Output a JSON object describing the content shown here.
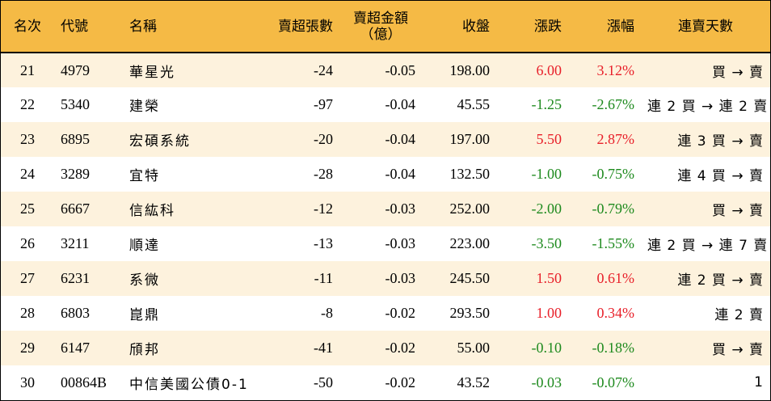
{
  "header": {
    "rank": "名次",
    "code": "代號",
    "name": "名稱",
    "net_sell_lots": "賣超張數",
    "net_sell_amount_line1": "賣超金額",
    "net_sell_amount_line2": "（億）",
    "close": "收盤",
    "change": "漲跌",
    "change_pct": "漲幅",
    "streak": "連賣天數"
  },
  "rows": [
    {
      "rank": "21",
      "code": "4979",
      "name": "華星光",
      "lots": "-24",
      "amount": "-0.05",
      "close": "198.00",
      "change": "6.00",
      "pct": "3.12%",
      "dir": "up",
      "streak": "買 → 賣"
    },
    {
      "rank": "22",
      "code": "5340",
      "name": "建榮",
      "lots": "-97",
      "amount": "-0.04",
      "close": "45.55",
      "change": "-1.25",
      "pct": "-2.67%",
      "dir": "down",
      "streak": "連 2 買 → 連 2 賣"
    },
    {
      "rank": "23",
      "code": "6895",
      "name": "宏碩系統",
      "lots": "-20",
      "amount": "-0.04",
      "close": "197.00",
      "change": "5.50",
      "pct": "2.87%",
      "dir": "up",
      "streak": "連 3 買 → 賣"
    },
    {
      "rank": "24",
      "code": "3289",
      "name": "宜特",
      "lots": "-28",
      "amount": "-0.04",
      "close": "132.50",
      "change": "-1.00",
      "pct": "-0.75%",
      "dir": "down",
      "streak": "連 4 買 → 賣"
    },
    {
      "rank": "25",
      "code": "6667",
      "name": "信紘科",
      "lots": "-12",
      "amount": "-0.03",
      "close": "252.00",
      "change": "-2.00",
      "pct": "-0.79%",
      "dir": "down",
      "streak": "買 → 賣"
    },
    {
      "rank": "26",
      "code": "3211",
      "name": "順達",
      "lots": "-13",
      "amount": "-0.03",
      "close": "223.00",
      "change": "-3.50",
      "pct": "-1.55%",
      "dir": "down",
      "streak": "連 2 買 → 連 7 賣"
    },
    {
      "rank": "27",
      "code": "6231",
      "name": "系微",
      "lots": "-11",
      "amount": "-0.03",
      "close": "245.50",
      "change": "1.50",
      "pct": "0.61%",
      "dir": "up",
      "streak": "連 2 買 → 賣"
    },
    {
      "rank": "28",
      "code": "6803",
      "name": "崑鼎",
      "lots": "-8",
      "amount": "-0.02",
      "close": "293.50",
      "change": "1.00",
      "pct": "0.34%",
      "dir": "up",
      "streak": "連 2 賣"
    },
    {
      "rank": "29",
      "code": "6147",
      "name": "頎邦",
      "lots": "-41",
      "amount": "-0.02",
      "close": "55.00",
      "change": "-0.10",
      "pct": "-0.18%",
      "dir": "down",
      "streak": "買 → 賣"
    },
    {
      "rank": "30",
      "code": "00864B",
      "name": "中信美國公債0-1",
      "lots": "-50",
      "amount": "-0.02",
      "close": "43.52",
      "change": "-0.03",
      "pct": "-0.07%",
      "dir": "down",
      "streak": "1"
    }
  ],
  "colors": {
    "header_bg": "#f5ba45",
    "alt_row_bg": "#fdf2dd",
    "up": "#e8202a",
    "down": "#1e8a1e"
  }
}
